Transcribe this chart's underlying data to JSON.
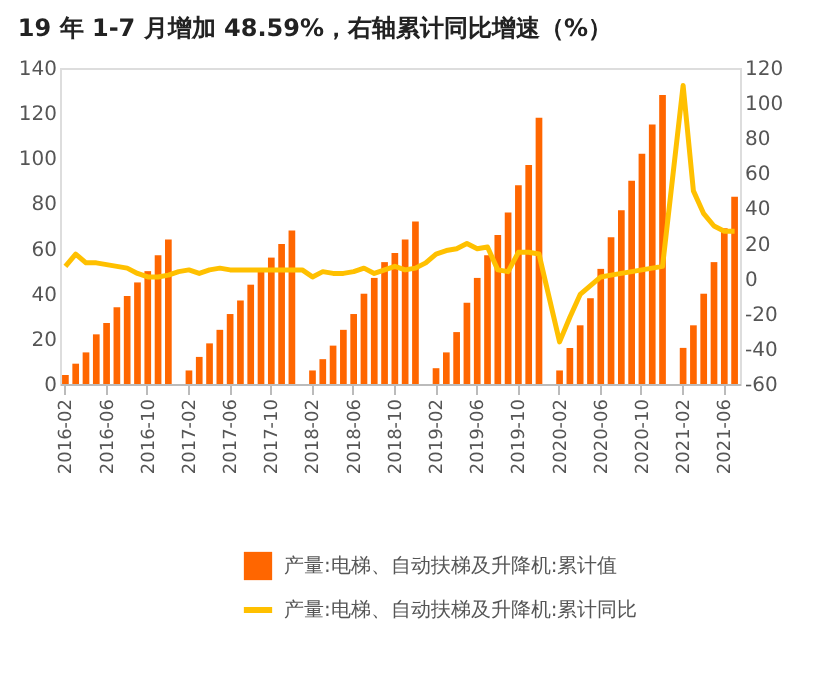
{
  "chart_data": {
    "type": "bar",
    "title": "19 年 1-7 月增加 48.59%，右轴累计同比增速（%）",
    "categories": [
      "2016-02",
      null,
      null,
      null,
      "2016-06",
      null,
      null,
      null,
      "2016-10",
      null,
      null,
      null,
      "2017-02",
      null,
      null,
      null,
      "2017-06",
      null,
      null,
      null,
      "2017-10",
      null,
      null,
      null,
      "2018-02",
      null,
      null,
      null,
      "2018-06",
      null,
      null,
      null,
      "2018-10",
      null,
      null,
      null,
      "2019-02",
      null,
      null,
      null,
      "2019-06",
      null,
      null,
      null,
      "2019-10",
      null,
      null,
      null,
      "2020-02",
      null,
      null,
      null,
      "2020-06",
      null,
      null,
      null,
      "2020-10",
      null,
      null,
      null,
      "2021-02",
      null,
      null,
      null,
      "2021-06",
      null
    ],
    "series": [
      {
        "name": "产量:电梯、自动扶梯及升降机:累计值",
        "color": "#ff6600",
        "values": [
          4,
          9,
          14,
          22,
          27,
          34,
          39,
          45,
          50,
          57,
          64,
          null,
          6,
          12,
          18,
          24,
          31,
          37,
          44,
          50,
          56,
          62,
          68,
          null,
          6,
          11,
          17,
          24,
          31,
          40,
          47,
          54,
          58,
          64,
          72,
          null,
          7,
          14,
          23,
          36,
          47,
          57,
          66,
          76,
          88,
          97,
          118,
          null,
          6,
          16,
          26,
          38,
          51,
          65,
          77,
          90,
          102,
          115,
          128,
          null,
          16,
          26,
          40,
          54,
          69,
          83
        ]
      },
      {
        "name": "产量:电梯、自动扶梯及升降机:累计同比",
        "type": "line",
        "axis": "y2",
        "color": "#ffc000",
        "values": [
          7,
          14,
          9,
          9,
          8,
          7,
          6,
          3,
          1,
          1,
          2,
          4,
          5,
          3,
          5,
          6,
          5,
          5,
          5,
          5,
          5,
          5,
          5,
          5,
          1,
          4,
          3,
          3,
          4,
          6,
          3,
          5,
          7,
          5,
          6,
          9,
          14,
          16,
          17,
          20,
          17,
          18,
          5,
          4,
          15,
          15,
          14,
          null,
          -36,
          -22,
          -9,
          -4,
          1,
          2,
          3,
          4,
          5,
          6,
          7,
          null,
          110,
          50,
          37,
          30,
          27,
          27
        ]
      }
    ],
    "ylim": [
      0,
      140
    ],
    "yticks": [
      0,
      20,
      40,
      60,
      80,
      100,
      120,
      140
    ],
    "y2lim": [
      -60,
      120
    ],
    "y2ticks": [
      -60,
      -40,
      -20,
      0,
      20,
      40,
      60,
      80,
      100,
      120
    ],
    "grid": false,
    "legend": "bottom"
  }
}
